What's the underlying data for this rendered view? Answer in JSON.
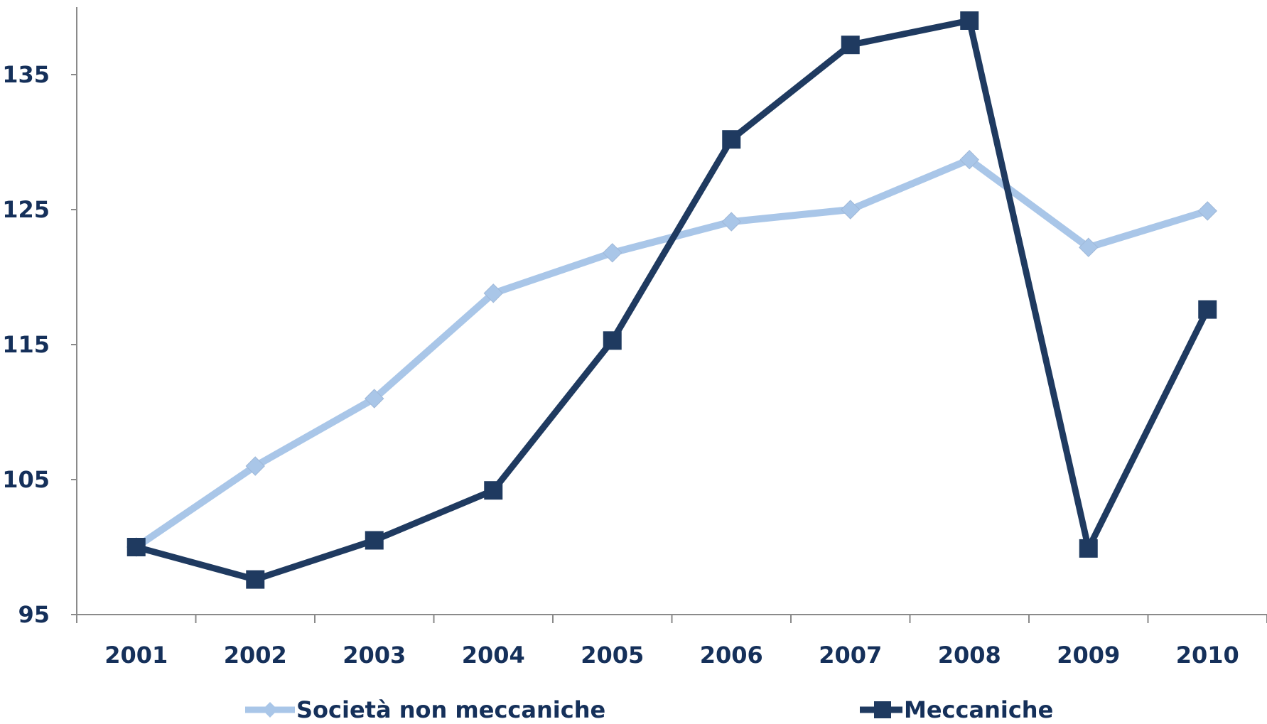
{
  "chart_data": {
    "type": "line",
    "title": "",
    "xlabel": "",
    "ylabel": "",
    "categories": [
      "2001",
      "2002",
      "2003",
      "2004",
      "2005",
      "2006",
      "2007",
      "2008",
      "2009",
      "2010"
    ],
    "ylim": [
      95,
      140
    ],
    "yticks": [
      95,
      105,
      115,
      125,
      135
    ],
    "ytick_labels": [
      "95",
      "105",
      "115",
      "125",
      "135"
    ],
    "grid": false,
    "legend_position": "bottom",
    "series": [
      {
        "name": "Società non meccaniche",
        "color": "#a9c6e8",
        "marker": "diamond",
        "values": [
          100,
          106,
          111,
          118.8,
          121.8,
          124.1,
          125,
          128.7,
          122.2,
          124.9
        ]
      },
      {
        "name": "Meccaniche",
        "color": "#1f3a60",
        "marker": "square",
        "values": [
          100,
          97.6,
          100.5,
          104.2,
          115.3,
          130.2,
          137.2,
          139,
          99.9,
          117.6
        ]
      }
    ]
  }
}
